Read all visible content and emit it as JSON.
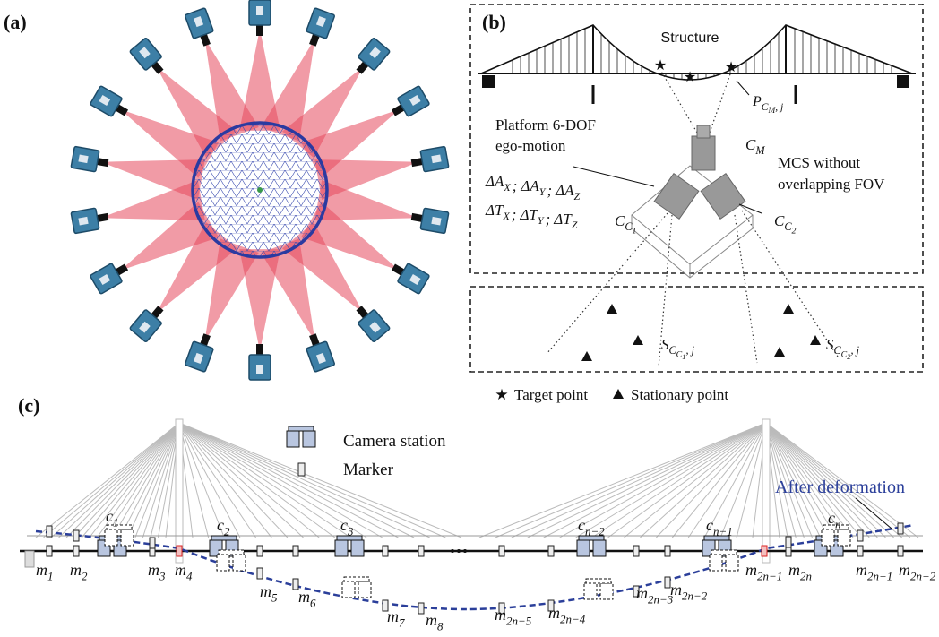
{
  "panel_labels": [
    "(a)",
    "(b)",
    "(c)"
  ],
  "panel_b": {
    "structure": "Structure",
    "target_label": {
      "base": "P",
      "sub": "C",
      "sub2": "M",
      "tail": ", j"
    },
    "platform_lines": [
      "Platform 6-DOF",
      "ego-motion"
    ],
    "rotation_terms": [
      {
        "base": "ΔA",
        "sub": "X"
      },
      {
        "base": "ΔA",
        "sub": "Y"
      },
      {
        "base": "ΔA",
        "sub": "Z"
      }
    ],
    "translation_terms": [
      {
        "base": "ΔT",
        "sub": "X"
      },
      {
        "base": "ΔT",
        "sub": "Y"
      },
      {
        "base": "ΔT",
        "sub": "Z"
      }
    ],
    "separator": ";",
    "camera_main": {
      "base": "C",
      "sub": "M"
    },
    "mcs_lines": [
      "MCS without",
      "overlapping FOV"
    ],
    "camera_1": {
      "base": "C",
      "sub": "C",
      "sub2": "1"
    },
    "camera_2": {
      "base": "C",
      "sub": "C",
      "sub2": "2"
    },
    "stationary_1": {
      "base": "S",
      "sub": "C",
      "sub2": "C",
      "sub3": "1",
      "tail": ", j"
    },
    "stationary_2": {
      "base": "S",
      "sub": "C",
      "sub2": "C",
      "sub3": "2",
      "tail": ", j"
    },
    "legend": [
      "Target point",
      "Stationary point"
    ]
  },
  "panel_c": {
    "legend": [
      "Camera station",
      "Marker"
    ],
    "after": "After deformation",
    "stations": [
      {
        "base": "c",
        "sub": "1"
      },
      {
        "base": "c",
        "sub": "2"
      },
      {
        "base": "c",
        "sub": "3"
      },
      {
        "base": "c",
        "sub": "n−2"
      },
      {
        "base": "c",
        "sub": "n−1"
      },
      {
        "base": "c",
        "sub": "n"
      }
    ],
    "markers": [
      {
        "base": "m",
        "sub": "1"
      },
      {
        "base": "m",
        "sub": "2"
      },
      {
        "base": "m",
        "sub": "3"
      },
      {
        "base": "m",
        "sub": "4"
      },
      {
        "base": "m",
        "sub": "5"
      },
      {
        "base": "m",
        "sub": "6"
      },
      {
        "base": "m",
        "sub": "7"
      },
      {
        "base": "m",
        "sub": "8"
      },
      {
        "base": "m",
        "sub": "2n−5"
      },
      {
        "base": "m",
        "sub": "2n−4"
      },
      {
        "base": "m",
        "sub": "2n−3"
      },
      {
        "base": "m",
        "sub": "2n−2"
      },
      {
        "base": "m",
        "sub": "2n−1"
      },
      {
        "base": "m",
        "sub": "2n"
      },
      {
        "base": "m",
        "sub": "2n+1"
      },
      {
        "base": "m",
        "sub": "2n+2"
      }
    ]
  }
}
